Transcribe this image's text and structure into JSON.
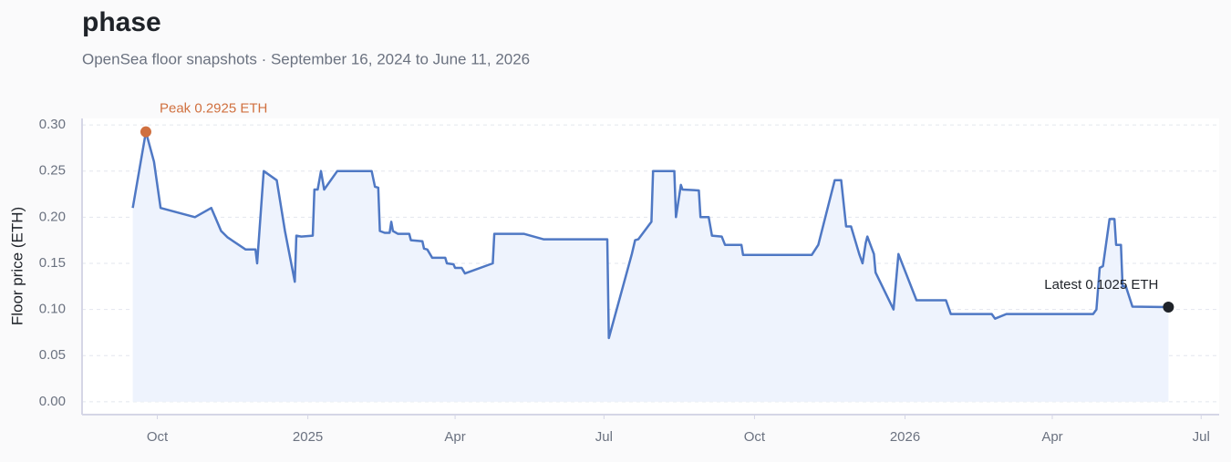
{
  "chart_data": {
    "type": "line",
    "title": "phase",
    "subtitle": "OpenSea floor snapshots · September 16, 2024 to June 11, 2026",
    "y_label": "Floor price (ETH)",
    "color": "#4f78c4",
    "fill_color": "#eef3fd",
    "grid": true,
    "x": [
      "2024-09-16",
      "2024-09-24",
      "2024-09-29",
      "2024-10-03",
      "2024-10-24",
      "2024-11-03",
      "2024-11-09",
      "2024-11-13",
      "2024-11-24",
      "2024-11-30",
      "2024-12-01",
      "2024-12-05",
      "2024-12-13",
      "2024-12-18",
      "2024-12-24",
      "2024-12-25",
      "2024-12-28",
      "2025-01-04",
      "2025-01-05",
      "2025-01-07",
      "2025-01-09",
      "2025-01-11",
      "2025-01-19",
      "2025-02-09",
      "2025-02-11",
      "2025-02-13",
      "2025-02-14",
      "2025-02-17",
      "2025-02-20",
      "2025-02-21",
      "2025-02-22",
      "2025-02-25",
      "2025-03-04",
      "2025-03-05",
      "2025-03-12",
      "2025-03-13",
      "2025-03-15",
      "2025-03-18",
      "2025-03-26",
      "2025-03-27",
      "2025-03-31",
      "2025-04-01",
      "2025-04-05",
      "2025-04-07",
      "2025-04-24",
      "2025-04-25",
      "2025-05-13",
      "2025-05-25",
      "2025-07-03",
      "2025-07-04",
      "2025-07-18",
      "2025-07-20",
      "2025-07-22",
      "2025-07-30",
      "2025-07-31",
      "2025-08-13",
      "2025-08-14",
      "2025-08-17",
      "2025-08-18",
      "2025-08-28",
      "2025-08-29",
      "2025-09-03",
      "2025-09-05",
      "2025-09-11",
      "2025-09-13",
      "2025-09-23",
      "2025-09-24",
      "2025-11-05",
      "2025-11-09",
      "2025-11-19",
      "2025-11-23",
      "2025-11-26",
      "2025-11-29",
      "2025-12-04",
      "2025-12-06",
      "2025-12-08",
      "2025-12-09",
      "2025-12-13",
      "2025-12-14",
      "2025-12-25",
      "2025-12-28",
      "2026-01-08",
      "2026-01-26",
      "2026-01-29",
      "2026-02-23",
      "2026-02-25",
      "2026-03-04",
      "2026-04-26",
      "2026-04-28",
      "2026-04-30",
      "2026-05-02",
      "2026-05-06",
      "2026-05-09",
      "2026-05-10",
      "2026-05-13",
      "2026-05-14",
      "2026-05-16",
      "2026-05-20",
      "2026-06-11"
    ],
    "values": [
      0.21,
      0.2925,
      0.26,
      0.21,
      0.2,
      0.21,
      0.185,
      0.178,
      0.165,
      0.165,
      0.15,
      0.25,
      0.24,
      0.185,
      0.13,
      0.18,
      0.179,
      0.18,
      0.23,
      0.23,
      0.25,
      0.23,
      0.25,
      0.25,
      0.233,
      0.232,
      0.185,
      0.183,
      0.183,
      0.195,
      0.185,
      0.182,
      0.182,
      0.175,
      0.174,
      0.166,
      0.165,
      0.156,
      0.156,
      0.15,
      0.149,
      0.145,
      0.145,
      0.139,
      0.15,
      0.182,
      0.182,
      0.176,
      0.176,
      0.069,
      0.16,
      0.175,
      0.176,
      0.195,
      0.25,
      0.25,
      0.2,
      0.235,
      0.23,
      0.229,
      0.2,
      0.2,
      0.18,
      0.179,
      0.17,
      0.17,
      0.159,
      0.159,
      0.17,
      0.24,
      0.24,
      0.19,
      0.19,
      0.16,
      0.15,
      0.172,
      0.179,
      0.16,
      0.14,
      0.1,
      0.16,
      0.11,
      0.11,
      0.095,
      0.095,
      0.09,
      0.095,
      0.095,
      0.1,
      0.145,
      0.147,
      0.198,
      0.198,
      0.17,
      0.17,
      0.125,
      0.125,
      0.103,
      0.1025
    ],
    "annotations": {
      "peak": {
        "text": "Peak 0.2925 ETH",
        "color": "#d0703f"
      },
      "latest": {
        "text": "Latest 0.1025 ETH",
        "color": "#1f2329"
      }
    },
    "xlim": [
      "2024-08-16",
      "2026-07-12"
    ],
    "xticks": [
      {
        "value": "2024-10-01",
        "label": "Oct"
      },
      {
        "value": "2025-01-01",
        "label": "2025"
      },
      {
        "value": "2025-04-01",
        "label": "Apr"
      },
      {
        "value": "2025-07-01",
        "label": "Jul"
      },
      {
        "value": "2025-10-01",
        "label": "Oct"
      },
      {
        "value": "2026-01-01",
        "label": "2026"
      },
      {
        "value": "2026-04-01",
        "label": "Apr"
      },
      {
        "value": "2026-07-01",
        "label": "Jul"
      }
    ],
    "ylim": [
      -0.014,
      0.307
    ],
    "yticks": [
      {
        "value": 0,
        "label": "0.00"
      },
      0.05,
      {
        "value": 0.1,
        "label": "0.10"
      },
      0.15,
      {
        "value": 0.2,
        "label": "0.20"
      },
      0.25,
      {
        "value": 0.3,
        "label": "0.30"
      }
    ]
  }
}
